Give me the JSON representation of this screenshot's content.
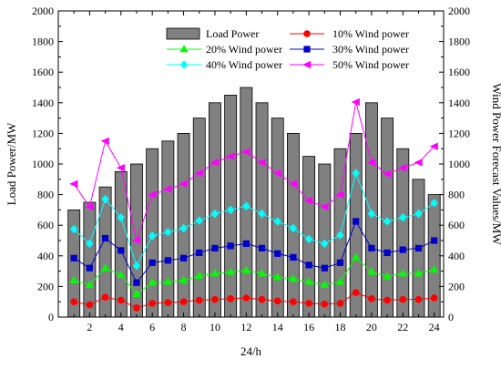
{
  "chart_data": {
    "type": "bar",
    "xlabel": "24/h",
    "ylabel_left": "Load Power/MW",
    "ylabel_right": "Wind Power Forecast Values/MW",
    "x": [
      1,
      2,
      3,
      4,
      5,
      6,
      7,
      8,
      9,
      10,
      11,
      12,
      13,
      14,
      15,
      16,
      17,
      18,
      19,
      20,
      21,
      22,
      23,
      24
    ],
    "xticks": [
      2,
      4,
      6,
      8,
      10,
      12,
      14,
      16,
      18,
      20,
      22,
      24
    ],
    "ylim_left": [
      0,
      2000
    ],
    "ylim_right": [
      0,
      2000
    ],
    "yticks": [
      0,
      200,
      400,
      600,
      800,
      1000,
      1200,
      1400,
      1600,
      1800,
      2000
    ],
    "xlim": [
      0,
      24.6
    ],
    "grid": false,
    "legend": {
      "placement": "top",
      "columns": 2
    },
    "bars": {
      "name": "Load Power",
      "color": "#808080",
      "values": [
        700,
        750,
        850,
        950,
        1000,
        1100,
        1150,
        1200,
        1300,
        1400,
        1450,
        1500,
        1400,
        1300,
        1200,
        1050,
        1000,
        1100,
        1200,
        1400,
        1300,
        1100,
        900,
        800
      ]
    },
    "series": [
      {
        "name": "10% Wind power",
        "color": "#ff0000",
        "marker": "circle",
        "values": [
          100,
          80,
          130,
          110,
          60,
          90,
          95,
          100,
          110,
          115,
          120,
          125,
          115,
          105,
          100,
          90,
          85,
          90,
          160,
          120,
          110,
          115,
          115,
          125
        ]
      },
      {
        "name": "20% Wind power",
        "color": "#00ff00",
        "marker": "triangle-up",
        "values": [
          240,
          210,
          320,
          275,
          150,
          225,
          230,
          240,
          270,
          285,
          295,
          305,
          285,
          260,
          250,
          230,
          210,
          230,
          390,
          295,
          265,
          285,
          285,
          310
        ]
      },
      {
        "name": "30% Wind power",
        "color": "#0000cc",
        "marker": "square",
        "values": [
          385,
          320,
          515,
          435,
          225,
          355,
          370,
          385,
          420,
          450,
          465,
          480,
          450,
          415,
          390,
          340,
          320,
          355,
          625,
          450,
          420,
          440,
          450,
          500
        ]
      },
      {
        "name": "40% Wind power",
        "color": "#00ffff",
        "marker": "diamond",
        "values": [
          575,
          480,
          770,
          650,
          335,
          530,
          555,
          580,
          630,
          675,
          700,
          725,
          675,
          625,
          580,
          510,
          480,
          535,
          940,
          675,
          625,
          650,
          675,
          745
        ]
      },
      {
        "name": "50% Wind power",
        "color": "#ff00ff",
        "marker": "triangle-left",
        "values": [
          870,
          720,
          1150,
          975,
          500,
          800,
          835,
          870,
          940,
          1010,
          1050,
          1080,
          1010,
          940,
          870,
          760,
          720,
          800,
          1405,
          1010,
          935,
          975,
          1010,
          1115
        ]
      }
    ]
  }
}
